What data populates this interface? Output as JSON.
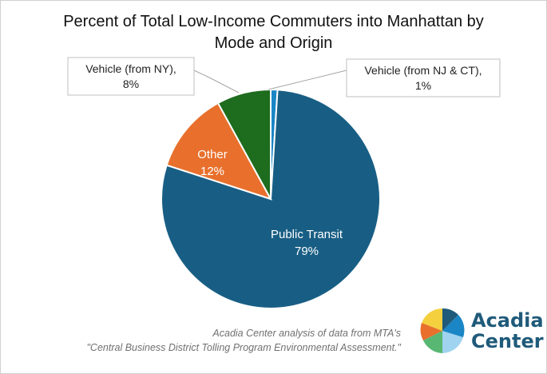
{
  "chart_data": {
    "type": "pie",
    "title_lines": [
      "Percent of Total Low-Income Commuters into Manhattan by",
      "Mode and Origin"
    ],
    "slices": [
      {
        "name": "Vehicle (from NJ & CT)",
        "value": 1,
        "label_text": "1%",
        "color": "#1a86c6",
        "label_style": "callout"
      },
      {
        "name": "Public Transit",
        "value": 79,
        "label_text": "79%",
        "color": "#185e84",
        "label_style": "inside"
      },
      {
        "name": "Other",
        "value": 12,
        "label_text": "12%",
        "color": "#e8702c",
        "label_style": "inside"
      },
      {
        "name": "Vehicle (from NY),",
        "value": 8,
        "label_text": "8%",
        "color": "#1e6c1e",
        "label_style": "callout"
      }
    ],
    "callout_names": {
      "vehicle_nj_ct": "Vehicle (from NJ & CT),",
      "vehicle_ny": "Vehicle (from NY),"
    },
    "legend": "none"
  },
  "source": {
    "line1": "Acadia Center analysis of data from MTA's",
    "line2": "\"Central Business District Tolling Program Environmental Assessment.\""
  },
  "logo": {
    "line1": "Acadia",
    "line2": "Center",
    "colors": [
      "#f4d03f",
      "#e8702c",
      "#3aaa5a",
      "#1f5a7a",
      "#1a86c6",
      "#9fd3ef"
    ]
  }
}
